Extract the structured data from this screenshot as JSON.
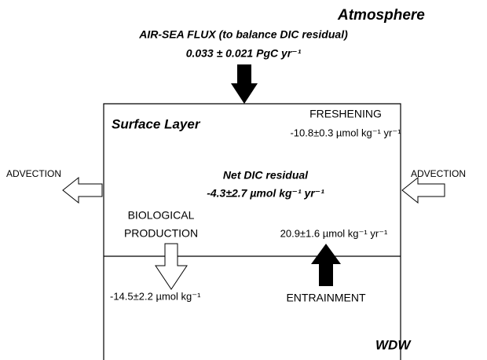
{
  "atmosphere": {
    "title": "Atmosphere",
    "flux_label": "AIR-SEA FLUX (to balance DIC residual)",
    "flux_value": "0.033 ± 0.021 PgC yr⁻¹"
  },
  "surface_layer": {
    "title": "Surface Layer",
    "freshening": {
      "label": "FRESHENING",
      "value": "-10.8±0.3 µmol kg⁻¹ yr⁻¹"
    },
    "advection_left": {
      "label": "ADVECTION"
    },
    "advection_right": {
      "label": "ADVECTION"
    },
    "residual": {
      "label": "Net DIC residual",
      "value": "-4.3±2.7 µmol kg⁻¹ yr⁻¹"
    },
    "biological": {
      "label_line1": "BIOLOGICAL",
      "label_line2": "PRODUCTION",
      "value": "-14.5±2.2 µmol kg⁻¹"
    },
    "entrainment": {
      "label": "ENTRAINMENT",
      "value": "20.9±1.6 µmol kg⁻¹ yr⁻¹"
    }
  },
  "deep_layer": {
    "title": "WDW"
  }
}
